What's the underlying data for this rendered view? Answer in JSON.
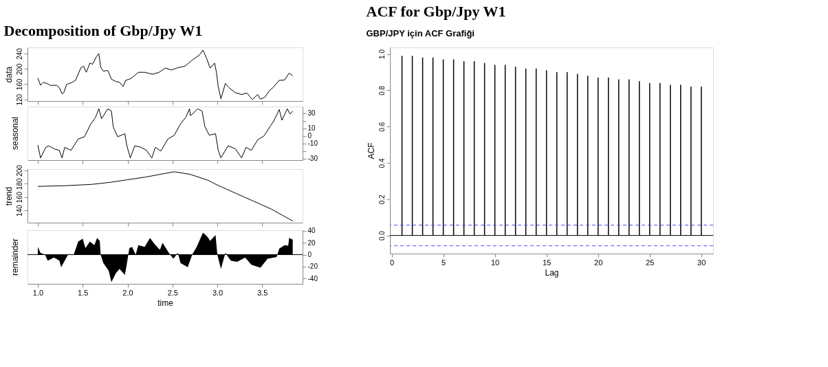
{
  "chart_data": [
    {
      "type": "line",
      "title": "Decomposition of Gbp/Jpy W1",
      "ylabel": "data",
      "tick_labels": "y",
      "xlim": [
        0.885,
        3.95
      ],
      "xticks": [
        1,
        1.5,
        2,
        2.5,
        3,
        3.5
      ],
      "ylim": [
        116,
        256
      ],
      "yticks": [
        120,
        160,
        200,
        240
      ],
      "series": [
        {
          "color": "#000000",
          "x": [
            1.0,
            1.03,
            1.064,
            1.099,
            1.14,
            1.21,
            1.24,
            1.27,
            1.29,
            1.32,
            1.385,
            1.42,
            1.48,
            1.51,
            1.54,
            1.58,
            1.61,
            1.65,
            1.68,
            1.7,
            1.73,
            1.78,
            1.82,
            1.87,
            1.91,
            1.95,
            1.98,
            2.04,
            2.12,
            2.19,
            2.28,
            2.35,
            2.42,
            2.49,
            2.56,
            2.64,
            2.72,
            2.8,
            2.84,
            2.88,
            2.92,
            2.97,
            2.99,
            3.01,
            3.04,
            3.09,
            3.13,
            3.2,
            3.27,
            3.33,
            3.39,
            3.45,
            3.48,
            3.53,
            3.58,
            3.62,
            3.69,
            3.75,
            3.8,
            3.84
          ],
          "values": [
            176,
            157,
            165,
            162,
            157,
            157,
            151,
            135,
            138,
            159,
            165,
            170,
            203,
            207,
            191,
            215,
            212,
            231,
            240,
            204,
            194,
            196,
            173,
            167,
            165,
            154,
            170,
            175,
            191,
            191,
            186,
            191,
            202,
            197,
            203,
            207,
            223,
            236,
            249,
            228,
            202,
            215,
            191,
            154,
            122,
            162,
            151,
            138,
            133,
            137,
            120,
            133,
            121,
            126,
            143,
            151,
            170,
            171,
            189,
            182
          ]
        }
      ]
    },
    {
      "type": "line",
      "ylabel": "seasonal",
      "tick_labels": "y",
      "xlim": [
        0.885,
        3.95
      ],
      "xticks": [
        1,
        1.5,
        2,
        2.5,
        3,
        3.5
      ],
      "y2lim": [
        -32,
        39
      ],
      "y2ticks": [
        -30,
        {
          "value": -20,
          "label": null
        },
        -10,
        0,
        10,
        {
          "value": 20,
          "label": null
        },
        30
      ],
      "series": [
        {
          "color": "#000000",
          "axis": "y2",
          "x": [
            1.0,
            1.03,
            1.09,
            1.12,
            1.18,
            1.24,
            1.27,
            1.3,
            1.37,
            1.45,
            1.52,
            1.59,
            1.64,
            1.68,
            1.71,
            1.78,
            1.82,
            1.84,
            1.89,
            1.97,
            1.99,
            2.03,
            2.08,
            2.15,
            2.21,
            2.27,
            2.31,
            2.37,
            2.45,
            2.52,
            2.59,
            2.65,
            2.69,
            2.7,
            2.74,
            2.78,
            2.83,
            2.86,
            2.91,
            2.98,
            3.01,
            3.04,
            3.12,
            3.2,
            3.27,
            3.32,
            3.38,
            3.45,
            3.52,
            3.59,
            3.63,
            3.69,
            3.72,
            3.78,
            3.81,
            3.84
          ],
          "values": [
            -12,
            -29,
            -15,
            -13,
            -17,
            -19,
            -29,
            -15,
            -19,
            -4,
            -1,
            16,
            24,
            36,
            23,
            36,
            33,
            12,
            -1,
            3,
            -12,
            -29,
            -13,
            -15,
            -19,
            -29,
            -15,
            -20,
            -4,
            1,
            16,
            25,
            36,
            27,
            31,
            36,
            33,
            13,
            1,
            3,
            -19,
            -29,
            -13,
            -17,
            -29,
            -15,
            -19,
            -5,
            0,
            13,
            20,
            35,
            21,
            36,
            29,
            33
          ]
        }
      ]
    },
    {
      "type": "line",
      "ylabel": "trend",
      "tick_labels": "y",
      "xlim": [
        0.885,
        3.95
      ],
      "xticks": [
        1,
        1.5,
        2,
        2.5,
        3,
        3.5
      ],
      "ylim": [
        121.5,
        202
      ],
      "yticks": [
        140,
        160,
        180,
        200
      ],
      "series": [
        {
          "color": "#000000",
          "x": [
            1.0,
            1.3,
            1.6,
            1.8,
            2.0,
            2.2,
            2.4,
            2.52,
            2.7,
            2.9,
            3.0,
            3.2,
            3.4,
            3.6,
            3.84
          ],
          "values": [
            176,
            177,
            179,
            182,
            186,
            190,
            195,
            198,
            194,
            185,
            178,
            166,
            154,
            142,
            124
          ]
        }
      ]
    },
    {
      "type": "area",
      "ylabel": "remainder",
      "xlabel": "time",
      "xlim": [
        0.885,
        3.95
      ],
      "xticks": [
        {
          "value": 1,
          "label": "1.0"
        },
        1.5,
        {
          "value": 2,
          "label": "2.0"
        },
        2.5,
        {
          "value": 3,
          "label": "3.0"
        },
        3.5
      ],
      "y2lim": [
        -49,
        41
      ],
      "y2ticks": [
        -40,
        -20,
        0,
        20,
        40
      ],
      "ref_lines": [
        {
          "axis": "y2",
          "value": 0,
          "color": "#000000",
          "line_style": "solid"
        }
      ],
      "series": [
        {
          "color": "#000000",
          "axis": "y2",
          "x": [
            1.0,
            1.03,
            1.08,
            1.11,
            1.18,
            1.24,
            1.26,
            1.3,
            1.34,
            1.4,
            1.45,
            1.5,
            1.53,
            1.58,
            1.63,
            1.66,
            1.69,
            1.7,
            1.73,
            1.79,
            1.82,
            1.87,
            1.91,
            1.97,
            1.99,
            2.02,
            2.05,
            2.09,
            2.12,
            2.19,
            2.25,
            2.3,
            2.36,
            2.39,
            2.46,
            2.51,
            2.56,
            2.59,
            2.67,
            2.72,
            2.77,
            2.84,
            2.89,
            2.92,
            2.98,
            3.0,
            3.04,
            3.09,
            3.15,
            3.22,
            3.31,
            3.38,
            3.48,
            3.56,
            3.66,
            3.69,
            3.75,
            3.79,
            3.8,
            3.84
          ],
          "values": [
            13,
            3,
            0,
            -10,
            -5,
            -10,
            -21,
            -10,
            1,
            0,
            22,
            27,
            11,
            22,
            16,
            28,
            23,
            0,
            -14,
            -27,
            -46,
            -31,
            -24,
            -34,
            -17,
            11,
            13,
            0,
            16,
            13,
            28,
            18,
            8,
            20,
            3,
            -7,
            3,
            -14,
            -21,
            0,
            13,
            37,
            30,
            23,
            33,
            0,
            -24,
            3,
            -10,
            -12,
            -5,
            -17,
            -22,
            -7,
            -4,
            10,
            16,
            15,
            28,
            25
          ]
        }
      ]
    },
    {
      "type": "bar",
      "title": "ACF for Gbp/Jpy W1",
      "subtitle": "GBP/JPY için ACF Grafiği",
      "xlabel": "Lag",
      "ylabel": "ACF",
      "xlim": [
        -0.17,
        31.15
      ],
      "xticks": [
        0,
        5,
        10,
        15,
        20,
        25,
        30
      ],
      "ylim": [
        -0.1,
        1.036
      ],
      "yticks": [
        {
          "value": 0,
          "label": "0.0"
        },
        0.2,
        0.4,
        0.6,
        0.8,
        {
          "value": 1,
          "label": "1.0"
        }
      ],
      "ref_lines": [
        {
          "axis": "y",
          "value": 0,
          "color": "#000000",
          "line_style": "solid"
        },
        {
          "axis": "y",
          "value": 0.057,
          "color": "#4d4dff",
          "line_style": "dashed"
        },
        {
          "axis": "y",
          "value": -0.057,
          "color": "#4d4dff",
          "line_style": "dashed"
        }
      ],
      "series": [
        {
          "color": "#000000",
          "x": [
            1,
            2,
            3,
            4,
            5,
            6,
            7,
            8,
            9,
            10,
            11,
            12,
            13,
            14,
            15,
            16,
            17,
            18,
            19,
            20,
            21,
            22,
            23,
            24,
            25,
            26,
            27,
            28,
            29,
            30
          ],
          "values": [
            0.99,
            0.99,
            0.98,
            0.98,
            0.97,
            0.97,
            0.96,
            0.96,
            0.95,
            0.94,
            0.94,
            0.93,
            0.92,
            0.92,
            0.91,
            0.9,
            0.9,
            0.89,
            0.88,
            0.87,
            0.87,
            0.86,
            0.86,
            0.85,
            0.84,
            0.84,
            0.83,
            0.83,
            0.82,
            0.82
          ]
        }
      ]
    }
  ]
}
